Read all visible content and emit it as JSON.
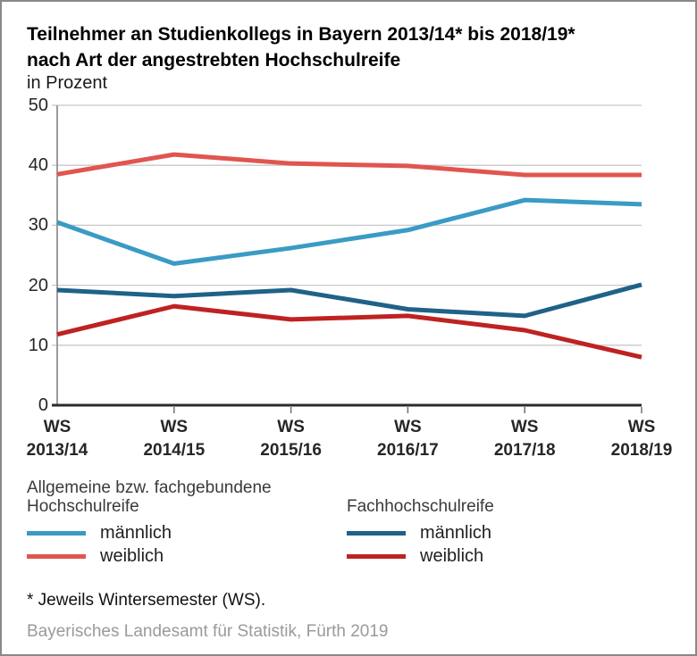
{
  "header": {
    "title_line1": "Teilnehmer an Studienkollegs in Bayern 2013/14* bis 2018/19*",
    "title_line2": "nach Art der angestrebten Hochschulreife",
    "subtitle": "in Prozent"
  },
  "chart_data": {
    "type": "line",
    "categories": [
      "WS 2013/14",
      "WS 2014/15",
      "WS 2015/16",
      "WS 2016/17",
      "WS 2017/18",
      "WS 2018/19"
    ],
    "x_prefix": "WS",
    "x_years": [
      "2013/14",
      "2014/15",
      "2015/16",
      "2016/17",
      "2017/18",
      "2018/19"
    ],
    "series": [
      {
        "id": "allgemein-maennlich",
        "name": "Allgemeine bzw. fachgebundene Hochschulreife – männlich",
        "color": "#3A9BC5",
        "values": [
          30.5,
          23.6,
          26.2,
          29.2,
          34.2,
          33.5
        ]
      },
      {
        "id": "allgemein-weiblich",
        "name": "Allgemeine bzw. fachgebundene Hochschulreife – weiblich",
        "color": "#E0564F",
        "values": [
          38.5,
          41.8,
          40.3,
          39.9,
          38.4,
          38.4
        ]
      },
      {
        "id": "fachhochschulreife-maennlich",
        "name": "Fachhochschulreife – männlich",
        "color": "#1F6287",
        "values": [
          19.2,
          18.2,
          19.2,
          16.0,
          14.9,
          20.1
        ]
      },
      {
        "id": "fachhochschulreife-weiblich",
        "name": "Fachhochschulreife – weiblich",
        "color": "#BE2221",
        "values": [
          11.8,
          16.5,
          14.3,
          14.9,
          12.5,
          8.0
        ]
      }
    ],
    "ylim": [
      0,
      50
    ],
    "yticks": [
      0,
      10,
      20,
      30,
      40,
      50
    ],
    "grid": "horizontal",
    "legend_position": "below"
  },
  "legend": {
    "groups": [
      {
        "title": "Allgemeine bzw. fachgebundene Hochschulreife",
        "items": [
          {
            "label": "männlich",
            "series": 0
          },
          {
            "label": "weiblich",
            "series": 1
          }
        ]
      },
      {
        "title": "Fachhochschulreife",
        "items": [
          {
            "label": "männlich",
            "series": 2
          },
          {
            "label": "weiblich",
            "series": 3
          }
        ]
      }
    ]
  },
  "footer": {
    "note": "* Jeweils Wintersemester (WS).",
    "source": "Bayerisches Landesamt für Statistik, Fürth 2019"
  },
  "colors": {
    "gridline": "#C8C8C8",
    "y_axis": "#9C9C9C",
    "x_axis": "#2B2B2B",
    "axis_tick": "#707070",
    "source_text": "#9A9A9A",
    "border": "#888888"
  }
}
